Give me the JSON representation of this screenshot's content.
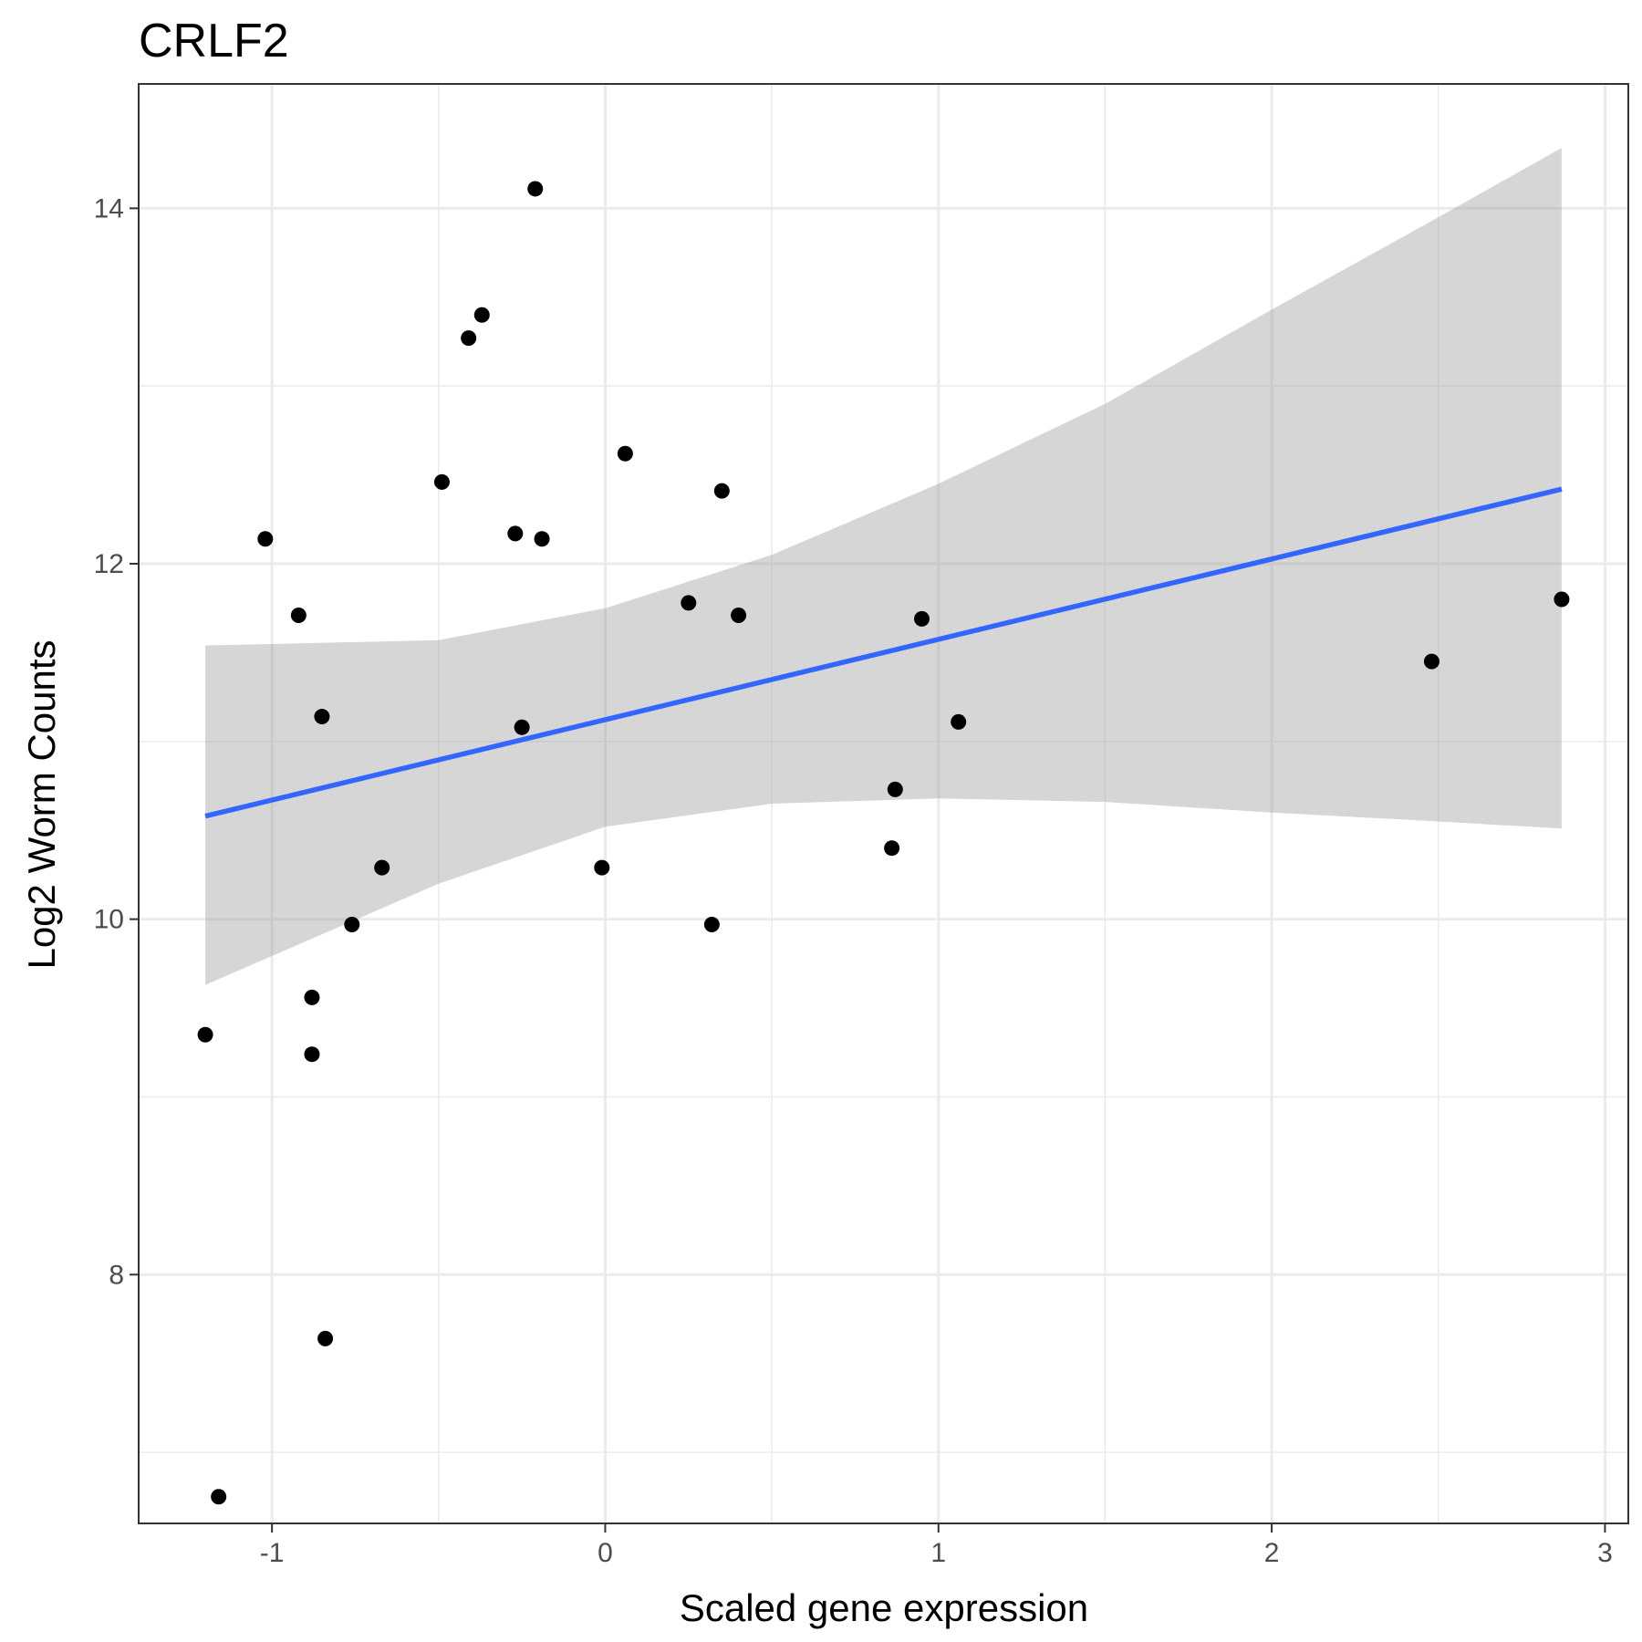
{
  "chart_data": {
    "type": "scatter",
    "title": "CRLF2",
    "xlabel": "Scaled gene expression",
    "ylabel": "Log2 Worm Counts",
    "xlim": [
      -1.4,
      3.07
    ],
    "ylim": [
      6.6,
      14.7
    ],
    "x_ticks": [
      -1,
      0,
      1,
      2,
      3
    ],
    "x_tick_labels": [
      "-1",
      "0",
      "1",
      "2",
      "3"
    ],
    "y_ticks": [
      8,
      10,
      12,
      14
    ],
    "y_tick_labels": [
      "8",
      "10",
      "12",
      "14"
    ],
    "grid": true,
    "legend": "none",
    "colors": {
      "points": "#000000",
      "fit_line": "#3366ff",
      "confidence_band": "#999999",
      "grid": "#ebebeb",
      "border": "#333333"
    },
    "points": [
      {
        "x": -1.2,
        "y": 9.35
      },
      {
        "x": -1.16,
        "y": 6.75
      },
      {
        "x": -1.02,
        "y": 12.14
      },
      {
        "x": -0.92,
        "y": 11.71
      },
      {
        "x": -0.88,
        "y": 9.56
      },
      {
        "x": -0.88,
        "y": 9.24
      },
      {
        "x": -0.85,
        "y": 11.14
      },
      {
        "x": -0.84,
        "y": 7.64
      },
      {
        "x": -0.76,
        "y": 9.97
      },
      {
        "x": -0.67,
        "y": 10.29
      },
      {
        "x": -0.49,
        "y": 12.46
      },
      {
        "x": -0.41,
        "y": 13.27
      },
      {
        "x": -0.37,
        "y": 13.4
      },
      {
        "x": -0.27,
        "y": 12.17
      },
      {
        "x": -0.25,
        "y": 11.08
      },
      {
        "x": -0.21,
        "y": 14.11
      },
      {
        "x": -0.19,
        "y": 12.14
      },
      {
        "x": -0.01,
        "y": 10.29
      },
      {
        "x": 0.06,
        "y": 12.62
      },
      {
        "x": 0.25,
        "y": 11.78
      },
      {
        "x": 0.32,
        "y": 9.97
      },
      {
        "x": 0.35,
        "y": 12.41
      },
      {
        "x": 0.4,
        "y": 11.71
      },
      {
        "x": 0.86,
        "y": 10.4
      },
      {
        "x": 0.87,
        "y": 10.73
      },
      {
        "x": 0.95,
        "y": 11.69
      },
      {
        "x": 1.06,
        "y": 11.11
      },
      {
        "x": 2.48,
        "y": 11.45
      },
      {
        "x": 2.87,
        "y": 11.8
      }
    ],
    "fit_line": {
      "x": [
        -1.2,
        2.87
      ],
      "y": [
        10.58,
        12.42
      ]
    },
    "confidence_band": {
      "x": [
        -1.2,
        -0.5,
        0.0,
        0.5,
        1.0,
        1.5,
        2.0,
        2.5,
        2.87
      ],
      "upper": [
        11.54,
        11.57,
        11.75,
        12.05,
        12.45,
        12.9,
        13.43,
        13.95,
        14.34
      ],
      "lower": [
        9.63,
        10.2,
        10.52,
        10.65,
        10.68,
        10.66,
        10.6,
        10.55,
        10.51
      ]
    }
  }
}
